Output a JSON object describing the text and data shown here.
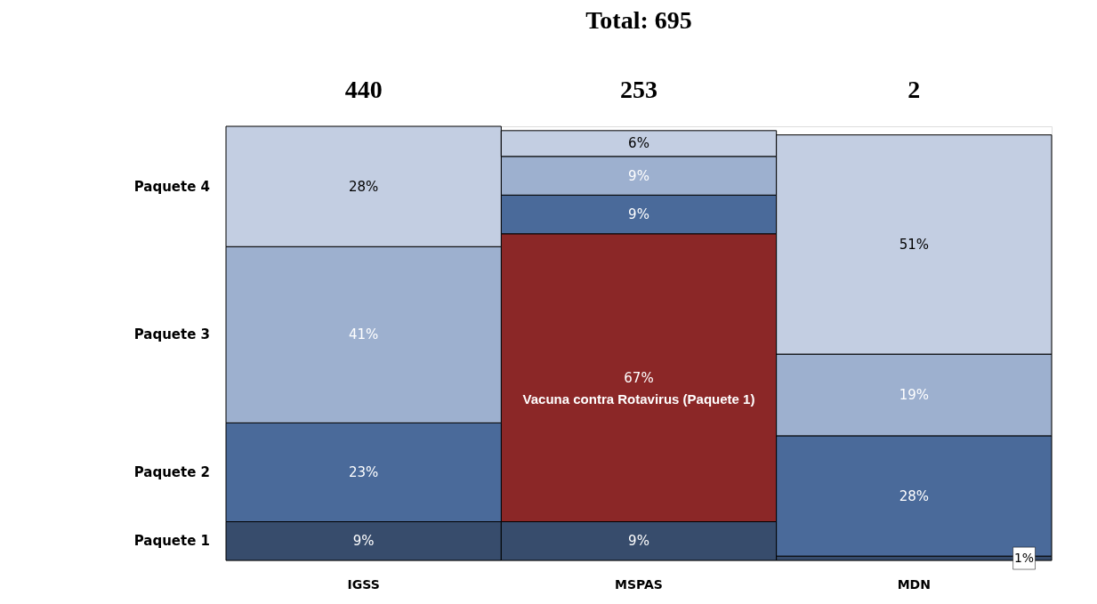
{
  "chart_data": {
    "type": "bar",
    "title": "Total: 695",
    "stacked": true,
    "categories": [
      "IGSS",
      "MSPAS",
      "MDN"
    ],
    "series": [
      {
        "name": "Paquete 1",
        "color": "#374c6c",
        "values": [
          9,
          9,
          1
        ],
        "value_labels": [
          "9%",
          "9%",
          "1%"
        ]
      },
      {
        "name": "Vacuna contra Rotavirus (Paquete 1)",
        "color": "#8b2727",
        "values": [
          null,
          67,
          null
        ],
        "value_labels": [
          null,
          "67%",
          null
        ]
      },
      {
        "name": "Paquete 2",
        "color": "#4a6a9a",
        "values": [
          23,
          9,
          28
        ],
        "value_labels": [
          "23%",
          "9%",
          "28%"
        ]
      },
      {
        "name": "Paquete 3",
        "color": "#9db0cf",
        "values": [
          41,
          9,
          19
        ],
        "value_labels": [
          "41%",
          "9%",
          "19%"
        ]
      },
      {
        "name": "Paquete 4",
        "color": "#c3cee2",
        "values": [
          28,
          6,
          51
        ],
        "value_labels": [
          "28%",
          "6%",
          "51%"
        ]
      }
    ],
    "annotations": [
      "440",
      "253",
      "2"
    ]
  }
}
